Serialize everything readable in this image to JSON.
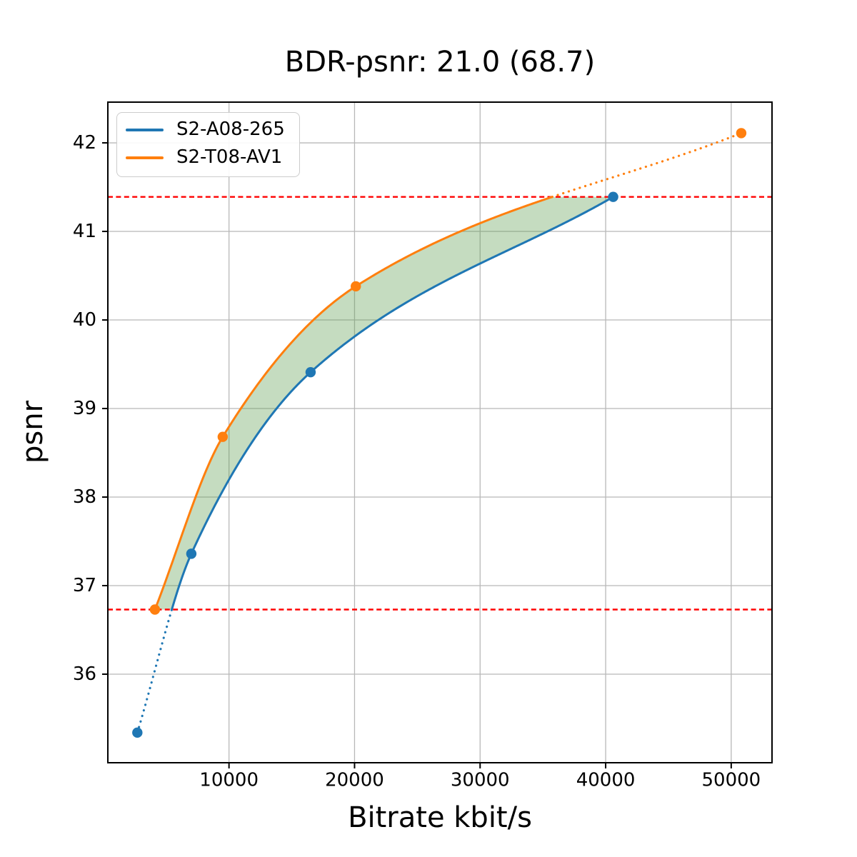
{
  "chart_data": {
    "type": "line",
    "title": "BDR-psnr: 21.0 (68.7)",
    "xlabel": "Bitrate kbit/s",
    "ylabel": "psnr",
    "xlim": [
      350,
      53250
    ],
    "ylim": [
      35.0,
      42.46
    ],
    "xticks": [
      10000,
      20000,
      30000,
      40000,
      50000
    ],
    "yticks": [
      36,
      37,
      38,
      39,
      40,
      41,
      42
    ],
    "grid": true,
    "grid_color": "#b8b8b8",
    "spine_color": "#000000",
    "background_color": "#ffffff",
    "legend_position": "upper left",
    "series": [
      {
        "name": "S2-A08-265",
        "color": "#1f77b4",
        "x": [
          2700,
          7000,
          16500,
          40600
        ],
        "y": [
          35.34,
          37.36,
          39.41,
          41.39
        ]
      },
      {
        "name": "S2-T08-AV1",
        "color": "#ff7f0e",
        "x": [
          4100,
          9500,
          20100,
          50800
        ],
        "y": [
          36.73,
          38.68,
          40.38,
          42.11
        ]
      }
    ],
    "overlap_lines": {
      "color": "#ff0000",
      "style": "dashed",
      "lower_psnr": 36.73,
      "upper_psnr": 41.39
    },
    "shaded_region": {
      "color": "#5a9a4a",
      "alpha": 0.35,
      "between": [
        "S2-T08-AV1",
        "S2-A08-265"
      ],
      "psnr_range": [
        36.73,
        41.39
      ]
    }
  }
}
